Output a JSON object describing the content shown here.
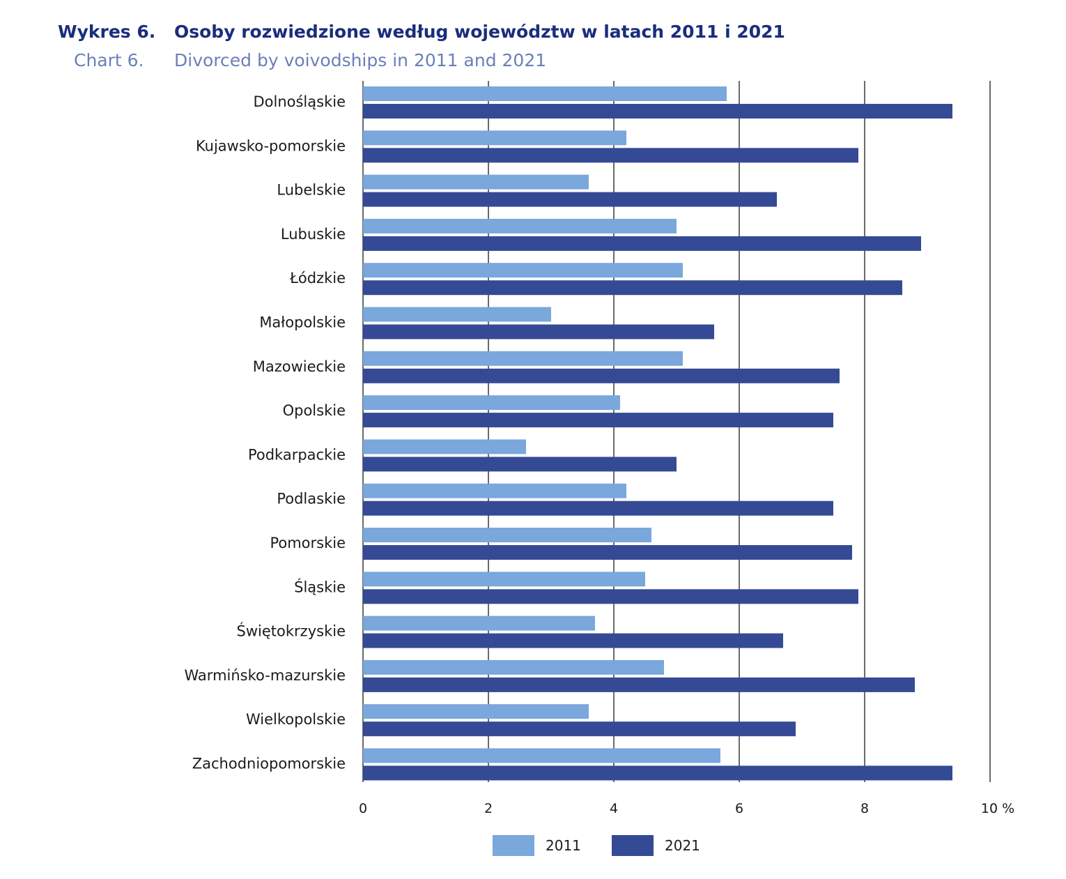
{
  "header": {
    "pl_label": "Wykres 6.",
    "pl_title": "Osoby rozwiedzione według województw w latach 2011 i 2021",
    "en_label": "Chart 6.",
    "en_title": "Divorced by voivodships in 2011 and 2021"
  },
  "colors": {
    "series_2011": "#7aa7dc",
    "series_2021": "#354a94",
    "grid": "#6a6a6a"
  },
  "chart_data": {
    "type": "bar",
    "orientation": "horizontal",
    "categories": [
      "Dolnośląskie",
      "Kujawsko-pomorskie",
      "Lubelskie",
      "Lubuskie",
      "Łódzkie",
      "Małopolskie",
      "Mazowieckie",
      "Opolskie",
      "Podkarpackie",
      "Podlaskie",
      "Pomorskie",
      "Śląskie",
      "Świętokrzyskie",
      "Warmińsko-mazurskie",
      "Wielkopolskie",
      "Zachodniopomorskie"
    ],
    "series": [
      {
        "name": "2011",
        "values": [
          5.8,
          4.2,
          3.6,
          5.0,
          5.1,
          3.0,
          5.1,
          4.1,
          2.6,
          4.2,
          4.6,
          4.5,
          3.7,
          4.8,
          3.6,
          5.7
        ]
      },
      {
        "name": "2021",
        "values": [
          9.4,
          7.9,
          6.6,
          8.9,
          8.6,
          5.6,
          7.6,
          7.5,
          5.0,
          7.5,
          7.8,
          7.9,
          6.7,
          8.8,
          6.9,
          9.4
        ]
      }
    ],
    "xlim": [
      0,
      10
    ],
    "x_ticks": [
      "0",
      "2",
      "4",
      "6",
      "8",
      "10 %"
    ],
    "grid": true,
    "legend": "bottom"
  }
}
